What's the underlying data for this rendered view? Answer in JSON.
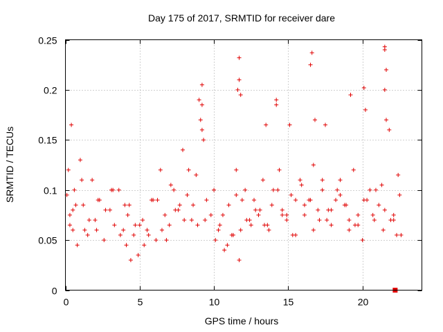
{
  "chart_data": {
    "type": "scatter",
    "title": "Day 175 of 2017, SRMTID for receiver dare",
    "xlabel": "GPS time / hours",
    "ylabel": "SRMTID / TECUs",
    "xlim": [
      0,
      24
    ],
    "ylim": [
      0,
      0.25
    ],
    "xticks": [
      0,
      5,
      10,
      15,
      20
    ],
    "xtick_labels": [
      "0",
      "5",
      "10",
      "15",
      "20"
    ],
    "yticks": [
      0,
      0.05,
      0.1,
      0.15,
      0.2,
      0.25
    ],
    "ytick_labels": [
      "0",
      "0.05",
      "0.1",
      "0.15",
      "0.2",
      "0.25"
    ],
    "grid": true,
    "marker": "+",
    "marker_color": "#e00000",
    "series": [
      {
        "name": "SRMTID",
        "x": [
          0.1,
          0.2,
          0.3,
          0.4,
          0.5,
          0.6,
          0.8,
          1.0,
          1.2,
          1.5,
          1.8,
          2.0,
          2.3,
          2.6,
          3.0,
          3.3,
          3.6,
          3.9,
          4.1,
          4.3,
          4.6,
          4.9,
          5.2,
          5.5,
          5.8,
          6.1,
          6.4,
          6.7,
          7.0,
          7.3,
          7.6,
          7.9,
          8.2,
          8.5,
          8.8,
          9.0,
          9.1,
          9.2,
          9.3,
          9.5,
          9.8,
          10.1,
          10.4,
          10.7,
          11.0,
          11.3,
          11.5,
          11.6,
          11.7,
          11.8,
          12.1,
          12.4,
          12.7,
          13.0,
          13.3,
          13.6,
          13.9,
          14.2,
          14.4,
          14.6,
          14.9,
          15.2,
          15.5,
          15.8,
          16.1,
          16.4,
          16.7,
          16.8,
          17.0,
          17.3,
          17.6,
          17.9,
          18.2,
          18.5,
          18.8,
          19.1,
          19.4,
          19.7,
          20.0,
          20.2,
          20.5,
          20.8,
          21.1,
          21.4,
          21.5,
          21.6,
          21.8,
          22.1,
          22.4,
          22.6,
          0.3,
          0.7,
          1.1,
          1.6,
          2.1,
          2.7,
          3.2,
          3.7,
          4.2,
          4.7,
          5.3,
          5.9,
          6.5,
          7.1,
          7.7,
          8.3,
          8.9,
          9.4,
          10.0,
          10.6,
          11.2,
          11.9,
          12.5,
          13.1,
          13.7,
          14.3,
          14.9,
          15.5,
          16.1,
          16.7,
          17.3,
          17.9,
          18.5,
          19.1,
          19.7,
          20.3,
          20.9,
          21.5,
          22.1,
          22.5,
          0.5,
          1.3,
          2.2,
          3.1,
          4.0,
          4.4,
          5.0,
          5.6,
          6.2,
          6.8,
          7.4,
          8.0,
          8.6,
          9.2,
          10.3,
          10.9,
          11.5,
          12.2,
          12.8,
          13.4,
          14.0,
          14.6,
          15.3,
          15.9,
          16.5,
          17.1,
          17.7,
          18.3,
          18.9,
          19.5,
          20.1,
          20.7,
          21.3,
          21.9,
          22.3,
          11.7,
          11.7,
          11.8,
          14.2,
          16.5,
          16.6,
          21.5,
          21.5,
          21.6,
          19.2,
          20.1,
          17.5,
          13.5,
          15.1,
          9.2
        ],
        "y": [
          0.095,
          0.12,
          0.075,
          0.165,
          0.06,
          0.1,
          0.045,
          0.13,
          0.085,
          0.055,
          0.11,
          0.07,
          0.09,
          0.05,
          0.08,
          0.065,
          0.1,
          0.06,
          0.045,
          0.085,
          0.055,
          0.035,
          0.07,
          0.06,
          0.09,
          0.05,
          0.12,
          0.075,
          0.065,
          0.1,
          0.08,
          0.14,
          0.095,
          0.07,
          0.115,
          0.19,
          0.17,
          0.205,
          0.15,
          0.09,
          0.075,
          0.05,
          0.065,
          0.04,
          0.085,
          0.055,
          0.12,
          0.2,
          0.03,
          0.06,
          0.1,
          0.07,
          0.09,
          0.075,
          0.11,
          0.065,
          0.085,
          0.185,
          0.12,
          0.08,
          0.07,
          0.095,
          0.055,
          0.11,
          0.075,
          0.09,
          0.125,
          0.17,
          0.08,
          0.1,
          0.07,
          0.065,
          0.09,
          0.11,
          0.085,
          0.06,
          0.12,
          0.075,
          0.05,
          0.18,
          0.1,
          0.07,
          0.085,
          0.06,
          0.24,
          0.22,
          0.16,
          0.075,
          0.115,
          0.055,
          0.065,
          0.085,
          0.11,
          0.07,
          0.06,
          0.08,
          0.1,
          0.055,
          0.075,
          0.065,
          0.045,
          0.09,
          0.06,
          0.105,
          0.085,
          0.12,
          0.065,
          0.07,
          0.1,
          0.075,
          0.055,
          0.09,
          0.065,
          0.08,
          0.06,
          0.1,
          0.075,
          0.09,
          0.085,
          0.06,
          0.11,
          0.08,
          0.095,
          0.07,
          0.065,
          0.09,
          0.1,
          0.08,
          0.07,
          0.095,
          0.08,
          0.06,
          0.09,
          0.1,
          0.085,
          0.03,
          0.065,
          0.055,
          0.09,
          0.05,
          0.08,
          0.07,
          0.085,
          0.16,
          0.06,
          0.045,
          0.095,
          0.07,
          0.08,
          0.065,
          0.1,
          0.075,
          0.055,
          0.105,
          0.09,
          0.07,
          0.08,
          0.1,
          0.085,
          0.065,
          0.09,
          0.075,
          0.105,
          0.07,
          0.055,
          0.232,
          0.21,
          0.195,
          0.19,
          0.225,
          0.237,
          0.243,
          0.2,
          0.17,
          0.195,
          0.202,
          0.165,
          0.165,
          0.165,
          0.185
        ],
        "flag_point": {
          "x": 22.2,
          "y": 0.0
        }
      }
    ]
  }
}
